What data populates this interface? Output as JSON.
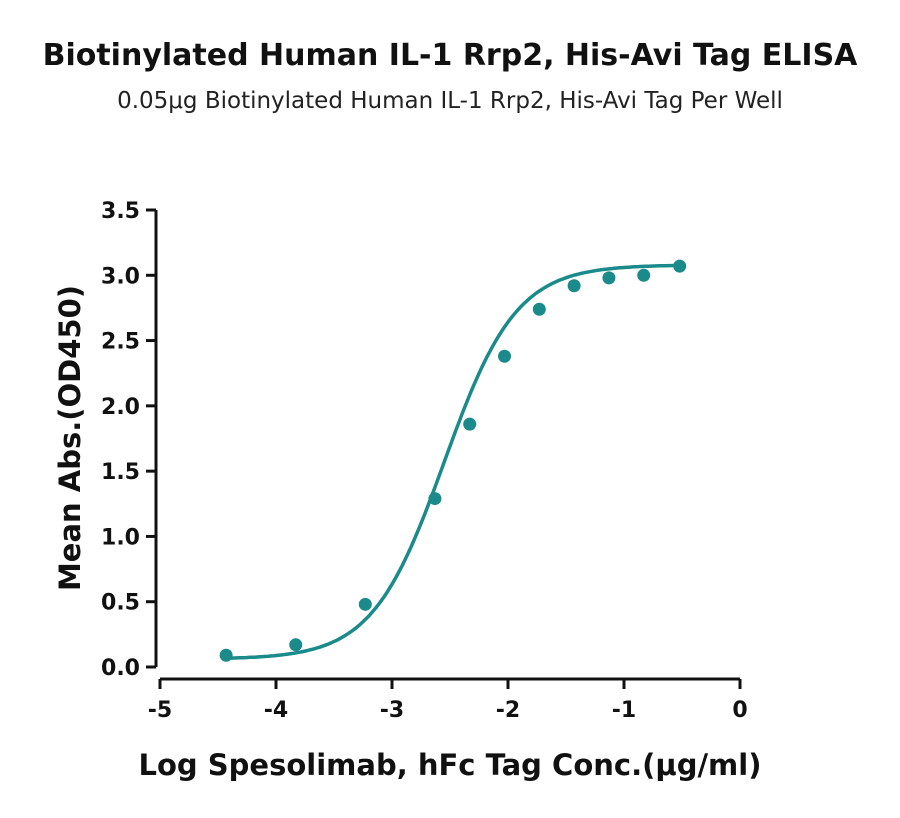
{
  "chart_data": {
    "type": "scatter",
    "title": "Biotinylated Human IL-1 Rrp2, His-Avi Tag ELISA",
    "subtitle": "0.05μg Biotinylated Human IL-1 Rrp2, His-Avi Tag Per Well",
    "xlabel": "Log Spesolimab, hFc Tag Conc.(μg/ml)",
    "ylabel": "Mean Abs.(OD450)",
    "xlim": [
      -5,
      0
    ],
    "ylim": [
      0,
      3.5
    ],
    "x_ticks": [
      "-5",
      "-4",
      "-3",
      "-2",
      "-1",
      "0"
    ],
    "y_ticks": [
      "0.0",
      "0.5",
      "1.0",
      "1.5",
      "2.0",
      "2.5",
      "3.0",
      "3.5"
    ],
    "grid": false,
    "color": "#1a8a8a",
    "series": [
      {
        "x": [
          -4.43,
          -3.83,
          -3.23,
          -2.63,
          -2.33,
          -2.03,
          -1.73,
          -1.43,
          -1.13,
          -0.83,
          -0.52
        ],
        "y": [
          0.09,
          0.17,
          0.48,
          1.29,
          1.86,
          2.38,
          2.74,
          2.92,
          2.98,
          3.0,
          3.07
        ],
        "fit": "4PL sigmoid"
      }
    ]
  }
}
